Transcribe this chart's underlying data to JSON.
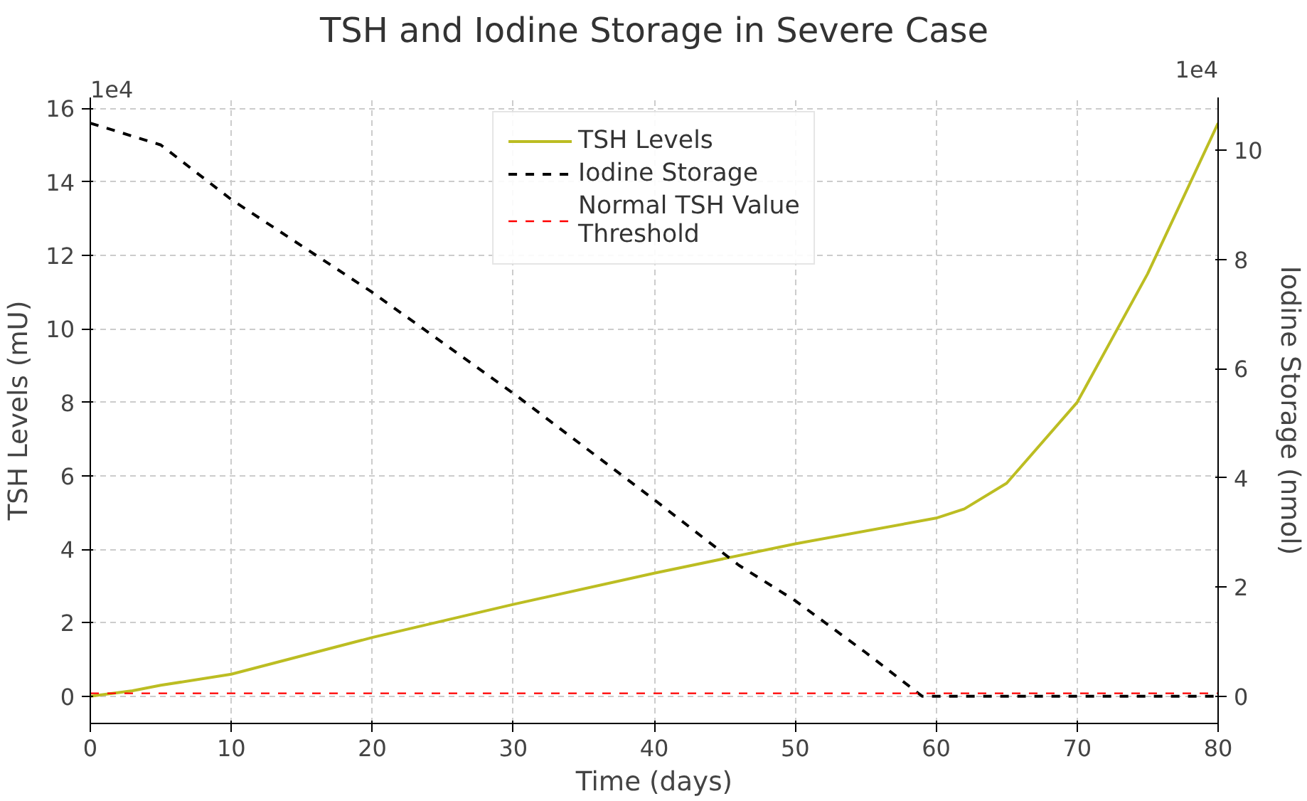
{
  "chart_data": {
    "type": "line",
    "title": "TSH and Iodine Storage in Severe Case",
    "xlabel": "Time (days)",
    "ylabel": "TSH Levels (mU)",
    "y2label": "Iodine Storage (nmol)",
    "annotations": [
      "1e4",
      "1e4"
    ],
    "series": [
      {
        "name": "TSH Levels",
        "color": "#bcbd22",
        "line_style": "solid",
        "x": [
          0,
          3,
          5,
          10,
          20,
          30,
          40,
          50,
          60,
          62,
          65,
          70,
          75,
          80
        ],
        "values": [
          0,
          0.15,
          0.3,
          0.6,
          1.6,
          2.5,
          3.35,
          4.15,
          4.85,
          5.1,
          5.8,
          8.0,
          11.5,
          15.6
        ]
      },
      {
        "name": "Iodine Storage",
        "color": "#000000",
        "line_style": "dashed",
        "axis": "y2",
        "x": [
          0,
          5,
          10,
          20,
          30,
          40,
          46,
          50,
          55,
          59,
          80
        ],
        "values": [
          10.5,
          10.1,
          9.1,
          7.4,
          5.55,
          3.6,
          2.4,
          1.75,
          0.8,
          0,
          0
        ]
      }
    ],
    "ref_lines": [
      {
        "axis": "y",
        "value": 0.08,
        "label": "Normal TSH Value Threshold",
        "color": "#ff0000",
        "line_style": "dashed"
      }
    ],
    "xlim": [
      0,
      80
    ],
    "xticks": [
      0,
      10,
      20,
      30,
      40,
      50,
      60,
      70,
      80
    ],
    "ylim": [
      -0.74,
      16.3
    ],
    "yticks": [
      0,
      2,
      4,
      6,
      8,
      10,
      12,
      14,
      16
    ],
    "y2lim": [
      -0.5,
      10.97
    ],
    "y2ticks": [
      0,
      2,
      4,
      6,
      8,
      10
    ],
    "grid": true,
    "legend": "top"
  }
}
